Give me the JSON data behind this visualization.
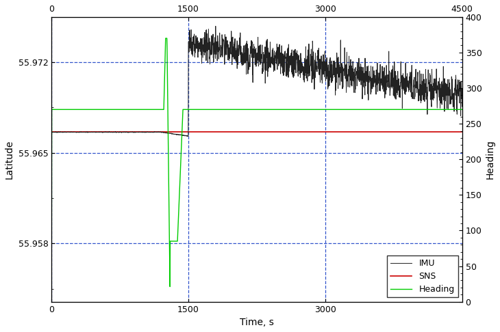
{
  "xlabel": "Time, s",
  "ylabel": "Latitude",
  "ylabel2": "Heading",
  "ylim_lat": [
    55.9535,
    55.9755
  ],
  "ylim_heading": [
    0,
    400
  ],
  "lat_ticks": [
    55.958,
    55.965,
    55.972
  ],
  "heading_ticks": [
    0,
    50,
    100,
    150,
    200,
    250,
    300,
    350,
    400
  ],
  "xticks_bottom": [
    0,
    1500,
    3000
  ],
  "xticks_top": [
    0,
    1500,
    3000,
    4500
  ],
  "sns_lat": 55.9666,
  "sns_color": "#cc0000",
  "imu_start_lat": 55.9666,
  "imu_drop_start": 1200,
  "imu_drop_end_lat": 55.9663,
  "imu_drop_t": 1500,
  "imu_jump_lat": 55.9735,
  "imu_noise_std": 0.00065,
  "imu_end_lat": 55.9695,
  "grid_color": "#3355cc",
  "imu_color": "#222222",
  "heading_color": "#00cc00",
  "background_color": "#ffffff",
  "legend_labels": [
    "IMU",
    "SNS",
    "Heading"
  ],
  "heading_flat1": 270,
  "heading_spike_t": 1250,
  "heading_spike_val": 370,
  "heading_dip_t1": 1300,
  "heading_dip_t2": 1380,
  "heading_dip_val": 85,
  "heading_resume_t": 1440,
  "heading_flat2": 270,
  "heading_flat_from_init_t": 100
}
